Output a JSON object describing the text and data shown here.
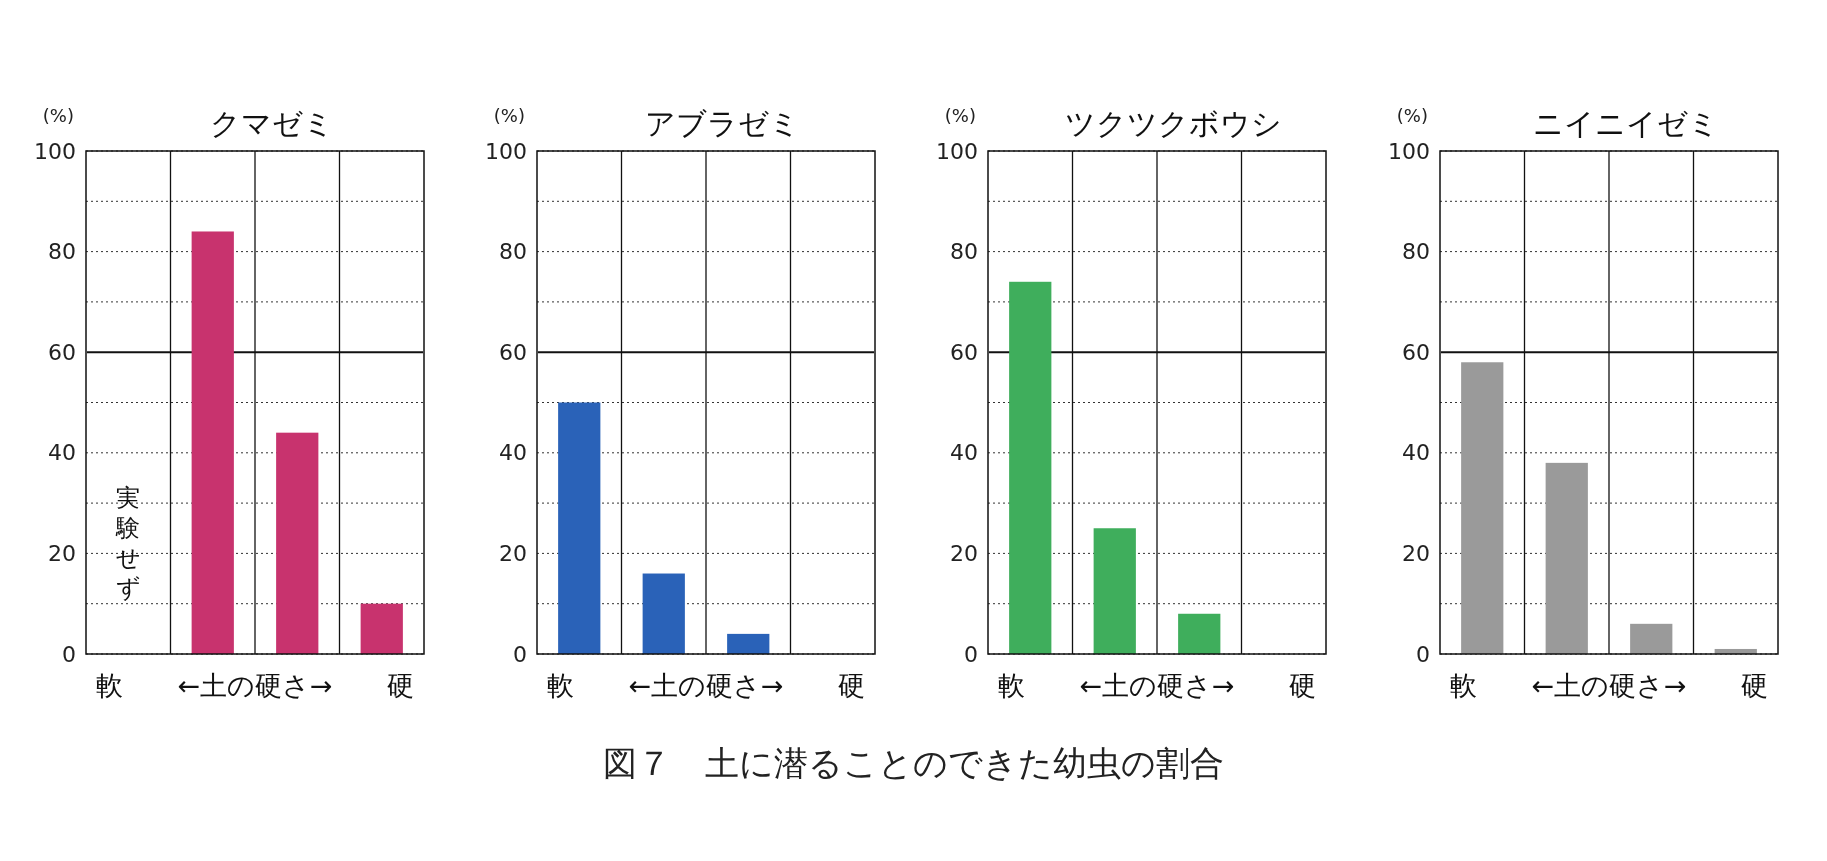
{
  "chart_data": [
    {
      "type": "bar",
      "title": "クマゼミ",
      "ylabel": "(%)",
      "xlabel": "←土の硬さ→",
      "categories": [
        "軟",
        null,
        null,
        "硬"
      ],
      "values": [
        null,
        84,
        44,
        10
      ],
      "color": "#c8336e",
      "ylim": [
        0,
        100
      ],
      "yticks": [
        0,
        {
          "value": 10,
          "label": null
        },
        20,
        {
          "value": 30,
          "label": null
        },
        40,
        {
          "value": 50,
          "label": null
        },
        60,
        {
          "value": 70,
          "label": null
        },
        80,
        {
          "value": 90,
          "label": null
        },
        100
      ],
      "grid": "y",
      "ref_lines": [
        {
          "axis": "y",
          "value": 60,
          "line_style": "solid"
        }
      ],
      "annotations": [
        "実験せず"
      ]
    },
    {
      "type": "bar",
      "title": "アブラゼミ",
      "ylabel": "(%)",
      "xlabel": "←土の硬さ→",
      "categories": [
        "軟",
        null,
        null,
        "硬"
      ],
      "values": [
        50,
        16,
        4,
        0
      ],
      "color": "#2a62b8",
      "ylim": [
        0,
        100
      ],
      "yticks": [
        0,
        {
          "value": 10,
          "label": null
        },
        20,
        {
          "value": 30,
          "label": null
        },
        40,
        {
          "value": 50,
          "label": null
        },
        60,
        {
          "value": 70,
          "label": null
        },
        80,
        {
          "value": 90,
          "label": null
        },
        100
      ],
      "grid": "y",
      "ref_lines": [
        {
          "axis": "y",
          "value": 60,
          "line_style": "solid"
        }
      ]
    },
    {
      "type": "bar",
      "title": "ツクツクボウシ",
      "ylabel": "(%)",
      "xlabel": "←土の硬さ→",
      "categories": [
        "軟",
        null,
        null,
        "硬"
      ],
      "values": [
        74,
        25,
        8,
        0
      ],
      "color": "#3fae5c",
      "ylim": [
        0,
        100
      ],
      "yticks": [
        0,
        {
          "value": 10,
          "label": null
        },
        20,
        {
          "value": 30,
          "label": null
        },
        40,
        {
          "value": 50,
          "label": null
        },
        60,
        {
          "value": 70,
          "label": null
        },
        80,
        {
          "value": 90,
          "label": null
        },
        100
      ],
      "grid": "y",
      "ref_lines": [
        {
          "axis": "y",
          "value": 60,
          "line_style": "solid"
        }
      ]
    },
    {
      "type": "bar",
      "title": "ニイニイゼミ",
      "ylabel": "(%)",
      "xlabel": "←土の硬さ→",
      "categories": [
        "軟",
        null,
        null,
        "硬"
      ],
      "values": [
        58,
        38,
        6,
        1
      ],
      "color": "#9a9a9a",
      "ylim": [
        0,
        100
      ],
      "yticks": [
        0,
        {
          "value": 10,
          "label": null
        },
        20,
        {
          "value": 30,
          "label": null
        },
        40,
        {
          "value": 50,
          "label": null
        },
        60,
        {
          "value": 70,
          "label": null
        },
        80,
        {
          "value": 90,
          "label": null
        },
        100
      ],
      "grid": "y",
      "ref_lines": [
        {
          "axis": "y",
          "value": 60,
          "line_style": "solid"
        }
      ],
      "annotations": [
        "図７　土に潜ることのできた幼虫の割合"
      ]
    }
  ]
}
